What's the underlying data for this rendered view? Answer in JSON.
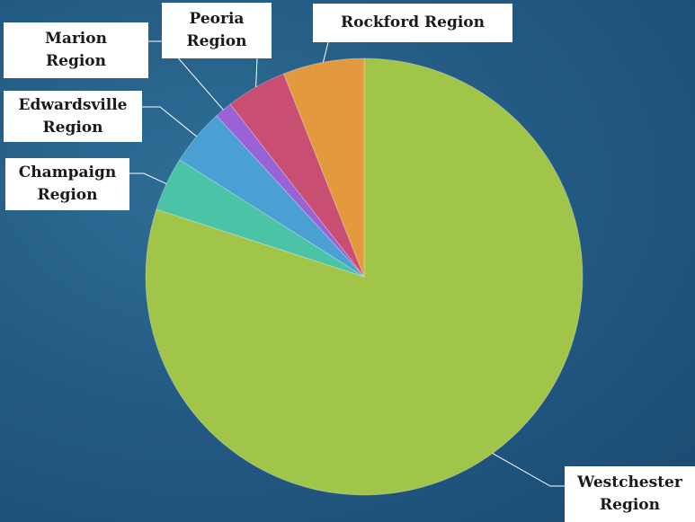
{
  "chart_data": {
    "type": "pie",
    "title": "",
    "start_angle_deg": 0,
    "direction": "clockwise",
    "slices": [
      {
        "label": "Westchester Region",
        "label_lines": [
          "Westchester",
          "Region"
        ],
        "value": 80.0,
        "color": "#a1c548"
      },
      {
        "label": "Champaign Region",
        "label_lines": [
          "Champaign",
          "Region"
        ],
        "value": 4.0,
        "color": "#4bc3a7"
      },
      {
        "label": "Edwardsville Region",
        "label_lines": [
          "Edwardsville",
          "Region"
        ],
        "value": 4.2,
        "color": "#4a9fd3"
      },
      {
        "label": "Marion Region",
        "label_lines": [
          "Marion",
          "Region"
        ],
        "value": 1.3,
        "color": "#9b61d6"
      },
      {
        "label": "Peoria Region",
        "label_lines": [
          "Peoria",
          "Region"
        ],
        "value": 4.5,
        "color": "#c84f72"
      },
      {
        "label": "Rockford Region",
        "label_lines": [
          "Rockford Region"
        ],
        "value": 6.0,
        "color": "#e39a3e"
      }
    ]
  }
}
